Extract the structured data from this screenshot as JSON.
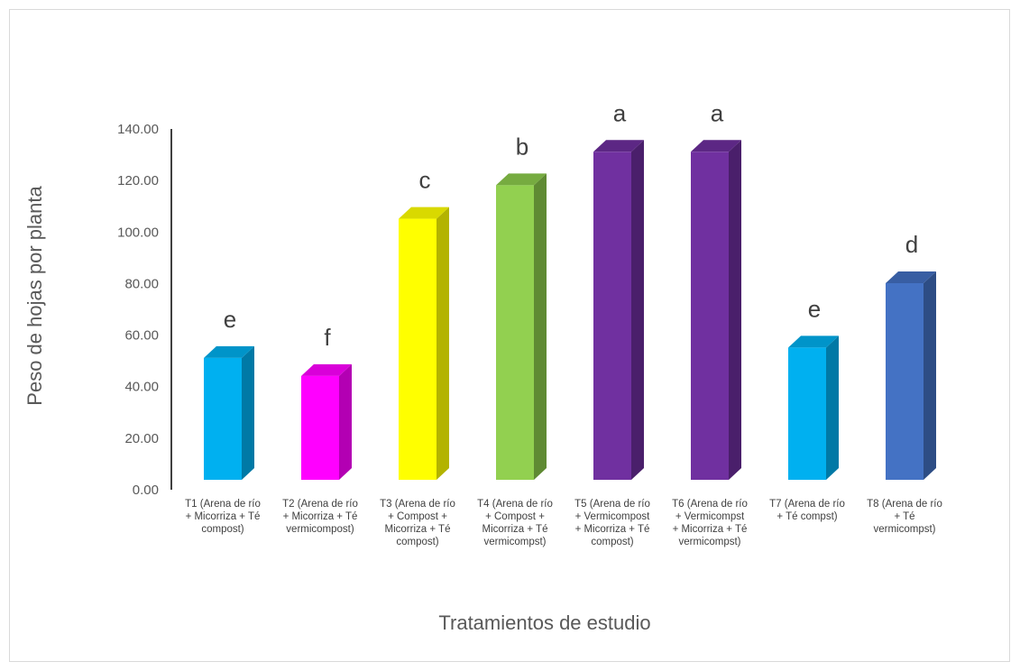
{
  "chart_data": {
    "type": "bar",
    "title": "",
    "xlabel": "Tratamientos de estudio",
    "ylabel": "Peso de hojas por planta",
    "ylim": [
      0,
      140
    ],
    "yticks": [
      "0.00",
      "20.00",
      "40.00",
      "60.00",
      "80.00",
      "100.00",
      "120.00",
      "140.00"
    ],
    "grid": false,
    "legend": "none",
    "style_3d": true,
    "categories": [
      [
        "T1 (Arena de río",
        "+ Micorriza + Té",
        "compost)"
      ],
      [
        "T2 (Arena de río",
        "+ Micorriza + Té",
        "vermicompost)"
      ],
      [
        "T3 (Arena de río",
        "+ Compost +",
        "Micorriza + Té",
        "compost)"
      ],
      [
        "T4 (Arena de río",
        "+ Compost +",
        "Micorriza + Té",
        "vermicompst)"
      ],
      [
        "T5 (Arena de río",
        "+ Vermicompost",
        "+ Micorriza + Té",
        "compost)"
      ],
      [
        "T6 (Arena de río",
        "+ Vermicompst",
        "+ Micorriza + Té",
        "vermicompst)"
      ],
      [
        "T7 (Arena de río",
        "+ Té compst)"
      ],
      [
        "T8 (Arena de río",
        "+ Té",
        "vermicompst)"
      ]
    ],
    "values": [
      55,
      48,
      109,
      122,
      135,
      135,
      59,
      84
    ],
    "letters": [
      "e",
      "f",
      "c",
      "b",
      "a",
      "a",
      "e",
      "d"
    ],
    "colors": [
      {
        "front": "#00b0f0",
        "side": "#0079a6",
        "top": "#0094c9"
      },
      {
        "front": "#ff00ff",
        "side": "#b300b3",
        "top": "#d900d9"
      },
      {
        "front": "#ffff00",
        "side": "#b3b300",
        "top": "#d9d900"
      },
      {
        "front": "#92d050",
        "side": "#5f8a33",
        "top": "#76ab40"
      },
      {
        "front": "#7030a0",
        "side": "#4a1f6b",
        "top": "#5c2784"
      },
      {
        "front": "#7030a0",
        "side": "#4a1f6b",
        "top": "#5c2784"
      },
      {
        "front": "#00b0f0",
        "side": "#0079a6",
        "top": "#0094c9"
      },
      {
        "front": "#4472c4",
        "side": "#2d4d85",
        "top": "#385ea3"
      }
    ],
    "axis_color": "#000000"
  }
}
